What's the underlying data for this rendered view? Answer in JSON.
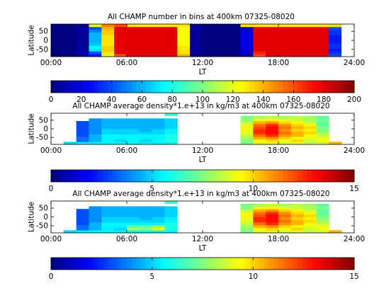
{
  "chart_data": [
    {
      "type": "heatmap",
      "title": "All CHAMP number in bins at 400km 07325-08020",
      "xlabel": "LT",
      "ylabel": "Latitude",
      "xlim": [
        0,
        24
      ],
      "ylim": [
        -90,
        90
      ],
      "x_ticks": [
        "00:00",
        "06:00",
        "12:00",
        "18:00",
        "24:00"
      ],
      "y_ticks": [
        "50",
        "0",
        "-50"
      ],
      "x_edges": [
        0,
        1,
        2,
        3,
        4,
        5,
        6,
        7,
        8,
        9,
        10,
        11,
        12,
        13,
        14,
        15,
        16,
        17,
        18,
        19,
        20,
        21,
        22,
        23,
        24
      ],
      "y_edges": [
        -90,
        -75,
        -60,
        -45,
        -30,
        -15,
        0,
        15,
        30,
        45,
        60,
        75,
        90
      ],
      "z_rows": [
        [
          0,
          0,
          5,
          30,
          120,
          160,
          180,
          180,
          180,
          180,
          140,
          5,
          0,
          0,
          0,
          10,
          160,
          180,
          180,
          180,
          180,
          180,
          40,
          0
        ],
        [
          0,
          0,
          10,
          40,
          130,
          180,
          180,
          180,
          180,
          180,
          130,
          5,
          0,
          0,
          0,
          15,
          170,
          180,
          180,
          180,
          180,
          180,
          35,
          0
        ],
        [
          0,
          0,
          5,
          70,
          135,
          180,
          180,
          180,
          180,
          180,
          130,
          5,
          0,
          0,
          0,
          15,
          180,
          180,
          180,
          180,
          180,
          180,
          30,
          0
        ],
        [
          0,
          0,
          5,
          75,
          135,
          180,
          180,
          180,
          180,
          180,
          130,
          5,
          0,
          0,
          0,
          20,
          180,
          180,
          180,
          180,
          180,
          180,
          35,
          0
        ],
        [
          0,
          0,
          5,
          65,
          130,
          180,
          180,
          180,
          180,
          180,
          125,
          5,
          0,
          0,
          0,
          20,
          180,
          180,
          180,
          180,
          180,
          180,
          35,
          0
        ],
        [
          0,
          0,
          5,
          60,
          130,
          180,
          180,
          180,
          180,
          180,
          125,
          5,
          0,
          0,
          0,
          20,
          180,
          180,
          180,
          180,
          180,
          180,
          30,
          0
        ],
        [
          0,
          0,
          5,
          60,
          130,
          180,
          180,
          180,
          180,
          180,
          125,
          5,
          0,
          0,
          0,
          20,
          180,
          180,
          180,
          180,
          180,
          180,
          30,
          0
        ],
        [
          0,
          0,
          5,
          60,
          130,
          180,
          180,
          180,
          180,
          180,
          125,
          5,
          0,
          0,
          0,
          20,
          180,
          180,
          180,
          180,
          180,
          180,
          30,
          0
        ],
        [
          0,
          0,
          5,
          60,
          135,
          180,
          180,
          180,
          180,
          180,
          125,
          5,
          0,
          0,
          0,
          20,
          180,
          180,
          180,
          180,
          180,
          180,
          35,
          0
        ],
        [
          0,
          0,
          5,
          50,
          135,
          180,
          180,
          180,
          180,
          180,
          125,
          5,
          0,
          0,
          0,
          15,
          180,
          180,
          180,
          180,
          180,
          180,
          35,
          0
        ],
        [
          0,
          0,
          10,
          40,
          140,
          180,
          180,
          180,
          180,
          180,
          125,
          10,
          0,
          0,
          0,
          15,
          180,
          180,
          180,
          180,
          180,
          180,
          40,
          0
        ],
        [
          0,
          0,
          0,
          120,
          150,
          160,
          130,
          130,
          130,
          130,
          130,
          0,
          0,
          0,
          0,
          130,
          130,
          130,
          130,
          130,
          130,
          130,
          130,
          0
        ]
      ],
      "nan_cells": [
        [
          0,
          23
        ],
        [
          1,
          23
        ],
        [
          2,
          23
        ],
        [
          3,
          23
        ],
        [
          4,
          23
        ],
        [
          5,
          23
        ],
        [
          6,
          23
        ],
        [
          7,
          23
        ],
        [
          8,
          23
        ],
        [
          9,
          23
        ],
        [
          10,
          23
        ],
        [
          11,
          23
        ]
      ]
    },
    {
      "type": "heatmap",
      "title": "All CHAMP average density*1.e+13 in kg/m3 at 400km 07325-08020",
      "xlabel": "LT",
      "ylabel": "Latitude",
      "xlim": [
        0,
        24
      ],
      "ylim": [
        -90,
        90
      ],
      "x_ticks": [
        "00:00",
        "06:00",
        "12:00",
        "18:00",
        "24:00"
      ],
      "y_ticks": [
        "50",
        "0",
        "-50"
      ],
      "x_edges": [
        0,
        1,
        2,
        3,
        4,
        5,
        6,
        7,
        8,
        9,
        10,
        11,
        12,
        13,
        14,
        15,
        16,
        17,
        18,
        19,
        20,
        21,
        22,
        23,
        24
      ],
      "y_edges": [
        -90,
        -75,
        -60,
        -45,
        -30,
        -15,
        0,
        15,
        30,
        45,
        60,
        75,
        90
      ],
      "z_rows": [
        [
          null,
          5.0,
          5.5,
          5.5,
          5.5,
          5.5,
          5.5,
          5.5,
          5.5,
          5.5,
          null,
          null,
          null,
          null,
          null,
          7.5,
          9.0,
          9.0,
          9.0,
          9.0,
          8.5,
          8.5,
          10.5,
          null
        ],
        [
          null,
          null,
          3.5,
          4.5,
          5.5,
          5.0,
          5.5,
          5.0,
          5.5,
          6.0,
          null,
          null,
          null,
          null,
          null,
          7.5,
          9.5,
          10.0,
          9.0,
          10.0,
          8.5,
          9.5,
          null,
          null
        ],
        [
          null,
          null,
          3.5,
          4.5,
          5.5,
          5.5,
          5.5,
          5.5,
          5.5,
          6.0,
          null,
          null,
          null,
          null,
          null,
          8.0,
          10.5,
          11.0,
          10.0,
          9.5,
          9.0,
          9.0,
          null,
          null
        ],
        [
          null,
          null,
          3.0,
          4.5,
          5.5,
          5.5,
          5.5,
          5.5,
          5.5,
          6.0,
          null,
          null,
          null,
          null,
          null,
          8.5,
          11.5,
          12.5,
          11.0,
          10.5,
          9.5,
          8.5,
          null,
          null
        ],
        [
          null,
          null,
          3.0,
          4.0,
          5.0,
          5.0,
          5.0,
          5.0,
          5.0,
          5.5,
          null,
          null,
          null,
          null,
          null,
          9.0,
          12.5,
          13.0,
          11.5,
          10.5,
          10.0,
          8.0,
          null,
          null
        ],
        [
          null,
          null,
          3.0,
          4.0,
          5.0,
          5.0,
          5.0,
          4.5,
          5.0,
          5.5,
          null,
          null,
          null,
          null,
          null,
          9.0,
          12.5,
          13.0,
          11.0,
          10.0,
          9.5,
          7.5,
          null,
          null
        ],
        [
          null,
          null,
          3.0,
          4.0,
          4.5,
          4.5,
          4.5,
          4.5,
          4.5,
          5.0,
          null,
          null,
          null,
          null,
          null,
          9.5,
          12.0,
          13.0,
          11.5,
          10.5,
          10.0,
          7.5,
          null,
          null
        ],
        [
          null,
          null,
          3.0,
          4.0,
          4.5,
          4.5,
          4.5,
          4.5,
          4.5,
          5.0,
          null,
          null,
          null,
          null,
          null,
          9.0,
          11.5,
          12.5,
          11.0,
          10.0,
          9.5,
          7.0,
          null,
          null
        ],
        [
          null,
          null,
          3.0,
          4.0,
          4.5,
          4.5,
          4.5,
          4.5,
          4.5,
          5.0,
          null,
          null,
          null,
          null,
          null,
          8.5,
          10.5,
          11.0,
          10.0,
          9.5,
          8.5,
          7.0,
          null,
          null
        ],
        [
          null,
          null,
          null,
          4.0,
          4.5,
          4.5,
          4.5,
          4.5,
          4.5,
          5.0,
          null,
          null,
          null,
          null,
          null,
          7.5,
          9.5,
          9.5,
          9.0,
          8.5,
          8.0,
          7.5,
          null,
          null
        ],
        [
          null,
          null,
          null,
          null,
          null,
          null,
          null,
          null,
          null,
          null,
          null,
          null,
          null,
          null,
          null,
          7.5,
          8.0,
          8.5,
          8.0,
          8.5,
          8.0,
          7.0,
          null,
          null
        ],
        [
          null,
          null,
          null,
          null,
          null,
          null,
          null,
          null,
          null,
          6.5,
          null,
          null,
          null,
          null,
          null,
          null,
          null,
          null,
          null,
          null,
          null,
          null,
          null,
          null
        ]
      ]
    },
    {
      "type": "heatmap",
      "title": "All CHAMP average density*1.e+13 in kg/m3 at 400km 07325-08020",
      "xlabel": "LT",
      "ylabel": "Latitude",
      "xlim": [
        0,
        24
      ],
      "ylim": [
        -90,
        90
      ],
      "x_ticks": [
        "00:00",
        "06:00",
        "12:00",
        "18:00",
        "24:00"
      ],
      "y_ticks": [
        "50",
        "0",
        "-50"
      ],
      "x_edges": [
        0,
        1,
        2,
        3,
        4,
        5,
        6,
        7,
        8,
        9,
        10,
        11,
        12,
        13,
        14,
        15,
        16,
        17,
        18,
        19,
        20,
        21,
        22,
        23,
        24
      ],
      "y_edges": [
        -90,
        -75,
        -60,
        -45,
        -30,
        -15,
        0,
        15,
        30,
        45,
        60,
        75,
        90
      ],
      "z_rows": [
        [
          null,
          5.0,
          5.5,
          5.5,
          5.5,
          5.5,
          5.5,
          5.5,
          5.5,
          5.5,
          null,
          null,
          null,
          null,
          null,
          7.5,
          9.0,
          9.0,
          9.0,
          9.0,
          8.5,
          8.5,
          10.5,
          null
        ],
        [
          null,
          null,
          3.5,
          4.5,
          5.5,
          5.0,
          8.0,
          7.5,
          9.0,
          6.0,
          null,
          null,
          null,
          null,
          null,
          7.5,
          9.5,
          10.0,
          9.0,
          10.0,
          8.5,
          9.5,
          null,
          null
        ],
        [
          null,
          null,
          3.5,
          4.5,
          5.5,
          5.5,
          7.0,
          7.0,
          8.0,
          6.0,
          null,
          null,
          null,
          null,
          null,
          8.0,
          10.5,
          11.0,
          10.0,
          9.5,
          9.0,
          9.0,
          null,
          null
        ],
        [
          null,
          null,
          3.0,
          4.5,
          5.5,
          5.5,
          5.5,
          5.5,
          5.5,
          6.0,
          null,
          null,
          null,
          null,
          null,
          8.5,
          11.5,
          12.5,
          11.0,
          10.5,
          9.5,
          8.5,
          null,
          null
        ],
        [
          null,
          null,
          3.0,
          4.0,
          5.0,
          5.0,
          5.0,
          5.0,
          5.0,
          5.5,
          null,
          null,
          null,
          null,
          null,
          9.0,
          12.5,
          13.0,
          11.5,
          10.5,
          10.0,
          8.0,
          null,
          null
        ],
        [
          null,
          null,
          3.0,
          4.0,
          5.0,
          5.0,
          5.0,
          4.5,
          5.0,
          5.5,
          null,
          null,
          null,
          null,
          null,
          9.0,
          12.5,
          13.0,
          11.0,
          10.0,
          9.5,
          7.5,
          null,
          null
        ],
        [
          null,
          null,
          3.0,
          4.0,
          4.5,
          4.5,
          4.5,
          4.5,
          4.5,
          5.0,
          null,
          null,
          null,
          null,
          null,
          9.5,
          12.0,
          13.0,
          11.5,
          10.5,
          10.0,
          7.5,
          null,
          null
        ],
        [
          null,
          null,
          3.0,
          4.0,
          4.5,
          4.5,
          4.5,
          4.5,
          4.5,
          5.0,
          null,
          null,
          null,
          null,
          null,
          9.0,
          11.5,
          12.5,
          11.0,
          10.0,
          9.5,
          7.0,
          null,
          null
        ],
        [
          null,
          null,
          3.0,
          4.0,
          4.5,
          4.5,
          4.5,
          4.5,
          4.5,
          5.0,
          null,
          null,
          null,
          null,
          null,
          8.5,
          10.5,
          11.0,
          10.0,
          9.5,
          8.5,
          7.0,
          null,
          null
        ],
        [
          null,
          null,
          null,
          4.0,
          4.5,
          4.5,
          4.5,
          4.5,
          4.5,
          5.0,
          null,
          null,
          null,
          null,
          null,
          7.5,
          9.5,
          9.5,
          9.0,
          8.5,
          8.0,
          7.5,
          null,
          null
        ],
        [
          null,
          null,
          null,
          null,
          null,
          null,
          null,
          null,
          null,
          null,
          null,
          null,
          null,
          null,
          null,
          7.5,
          8.0,
          8.5,
          8.0,
          8.5,
          8.0,
          7.0,
          null,
          null
        ],
        [
          null,
          null,
          null,
          null,
          null,
          null,
          null,
          null,
          null,
          6.5,
          null,
          null,
          null,
          null,
          null,
          null,
          null,
          null,
          null,
          null,
          null,
          null,
          null,
          null
        ]
      ]
    }
  ],
  "colorbars": [
    {
      "min": 0,
      "max": 200,
      "ticks": [
        0,
        20,
        40,
        60,
        80,
        100,
        120,
        140,
        160,
        180,
        200
      ]
    },
    {
      "min": 0,
      "max": 15,
      "ticks": [
        0,
        5,
        10,
        15
      ]
    },
    {
      "min": 0,
      "max": 15,
      "ticks": [
        0,
        5,
        10,
        15
      ]
    }
  ],
  "colormap": "jet",
  "colors": {
    "nan_fill": "#00008f",
    "axis": "#000000",
    "background": "#ffffff"
  }
}
